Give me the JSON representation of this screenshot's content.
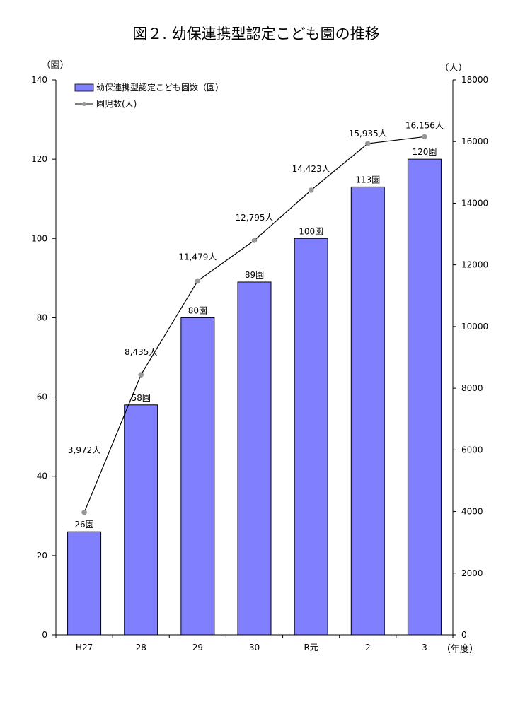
{
  "chart_data": {
    "type": "bar",
    "title": "図２. 幼保連携型認定こども園の推移",
    "categories": [
      "H27",
      "28",
      "29",
      "30",
      "R元",
      "2",
      "3"
    ],
    "xlabel": "（年度）",
    "left_axis": {
      "unit_label": "（園）",
      "ylim": [
        0,
        140
      ],
      "ticks": [
        "0",
        "20",
        "40",
        "60",
        "80",
        "100",
        "120",
        "140"
      ]
    },
    "right_axis": {
      "unit_label": "（人）",
      "ylim": [
        0,
        18000
      ],
      "ticks": [
        "0",
        "2000",
        "4000",
        "6000",
        "8000",
        "10000",
        "12000",
        "14000",
        "16000",
        "18000"
      ]
    },
    "series": [
      {
        "name": "幼保連携型認定こども園数（園）",
        "type": "bar",
        "axis": "left",
        "color": "#8080ff",
        "values": [
          26,
          58,
          80,
          89,
          100,
          113,
          120
        ],
        "labels": [
          "26園",
          "58園",
          "80園",
          "89園",
          "100園",
          "113園",
          "120園"
        ]
      },
      {
        "name": "園児数(人)",
        "type": "line",
        "axis": "right",
        "color": "#000000",
        "marker_color": "#999999",
        "values": [
          3972,
          8435,
          11479,
          12795,
          14423,
          15935,
          16156
        ],
        "labels": [
          "3,972人",
          "8,435人",
          "11,479人",
          "12,795人",
          "14,423人",
          "15,935人",
          "16,156人"
        ]
      }
    ],
    "legend_position": "top-left",
    "grid": false
  }
}
